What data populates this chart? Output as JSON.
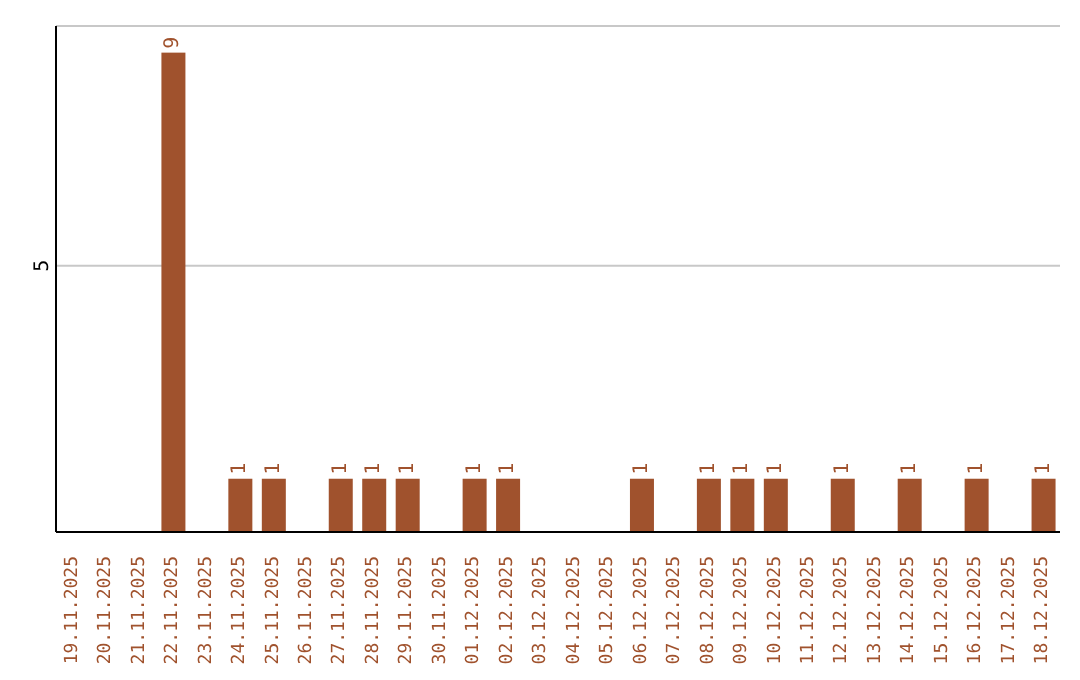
{
  "chart_data": {
    "type": "bar",
    "categories": [
      "19.11.2025",
      "20.11.2025",
      "21.11.2025",
      "22.11.2025",
      "23.11.2025",
      "24.11.2025",
      "25.11.2025",
      "26.11.2025",
      "27.11.2025",
      "28.11.2025",
      "29.11.2025",
      "30.11.2025",
      "01.12.2025",
      "02.12.2025",
      "03.12.2025",
      "04.12.2025",
      "05.12.2025",
      "06.12.2025",
      "07.12.2025",
      "08.12.2025",
      "09.12.2025",
      "10.12.2025",
      "11.12.2025",
      "12.12.2025",
      "13.12.2025",
      "14.12.2025",
      "15.12.2025",
      "16.12.2025",
      "17.12.2025",
      "18.12.2025"
    ],
    "values": [
      0,
      0,
      0,
      9,
      0,
      1,
      1,
      0,
      1,
      1,
      1,
      0,
      1,
      1,
      0,
      0,
      0,
      1,
      0,
      1,
      1,
      1,
      0,
      1,
      0,
      1,
      0,
      1,
      0,
      1
    ],
    "value_labels": [
      null,
      null,
      null,
      "9",
      null,
      "1",
      "1",
      null,
      "1",
      "1",
      "1",
      null,
      "1",
      "1",
      null,
      null,
      null,
      "1",
      null,
      "1",
      "1",
      "1",
      null,
      "1",
      null,
      "1",
      null,
      "1",
      null,
      "1"
    ],
    "color": "#a0522d",
    "ylim": [
      0,
      9.5
    ],
    "yticks": [
      5
    ],
    "grid": "y"
  }
}
